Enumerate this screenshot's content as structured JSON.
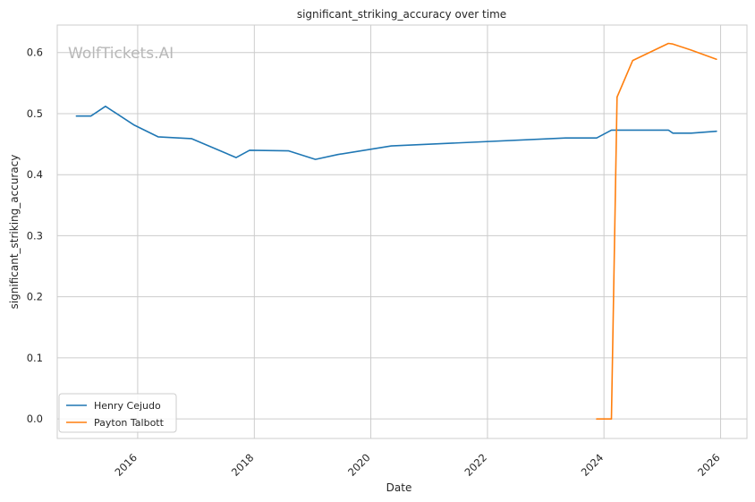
{
  "chart_data": {
    "type": "line",
    "title": "significant_striking_accuracy over time",
    "xlabel": "Date",
    "ylabel": "significant_striking_accuracy",
    "watermark": "WolfTickets.AI",
    "x_ticks": [
      "2016",
      "2018",
      "2020",
      "2022",
      "2024",
      "2026"
    ],
    "y_ticks": [
      "0.0",
      "0.1",
      "0.2",
      "0.3",
      "0.4",
      "0.5",
      "0.6"
    ],
    "xlim": [
      "2014-08-15",
      "2026-06-15"
    ],
    "ylim": [
      -0.032,
      0.645
    ],
    "grid": true,
    "legend_position": "lower-left",
    "series": [
      {
        "name": "Henry Cejudo",
        "color": "#1f77b4",
        "points": [
          [
            "2014-12-13",
            0.496
          ],
          [
            "2015-03-14",
            0.496
          ],
          [
            "2015-06-13",
            0.512
          ],
          [
            "2015-12-11",
            0.481
          ],
          [
            "2016-05-08",
            0.462
          ],
          [
            "2016-12-03",
            0.459
          ],
          [
            "2017-09-09",
            0.428
          ],
          [
            "2017-12-02",
            0.44
          ],
          [
            "2018-08-04",
            0.439
          ],
          [
            "2019-01-19",
            0.425
          ],
          [
            "2019-06-08",
            0.433
          ],
          [
            "2020-05-09",
            0.447
          ],
          [
            "2023-05-06",
            0.46
          ],
          [
            "2023-11-16",
            0.46
          ],
          [
            "2024-02-17",
            0.473
          ],
          [
            "2025-02-08",
            0.473
          ],
          [
            "2025-03-08",
            0.468
          ],
          [
            "2025-07-01",
            0.468
          ],
          [
            "2025-12-06",
            0.471
          ]
        ]
      },
      {
        "name": "Payton Talbott",
        "color": "#ff7f0e",
        "points": [
          [
            "2023-11-16",
            0.0
          ],
          [
            "2024-02-17",
            0.0
          ],
          [
            "2024-03-23",
            0.527
          ],
          [
            "2024-06-29",
            0.587
          ],
          [
            "2025-02-08",
            0.615
          ],
          [
            "2025-03-08",
            0.614
          ],
          [
            "2025-07-01",
            0.604
          ],
          [
            "2025-12-06",
            0.589
          ]
        ]
      }
    ]
  }
}
